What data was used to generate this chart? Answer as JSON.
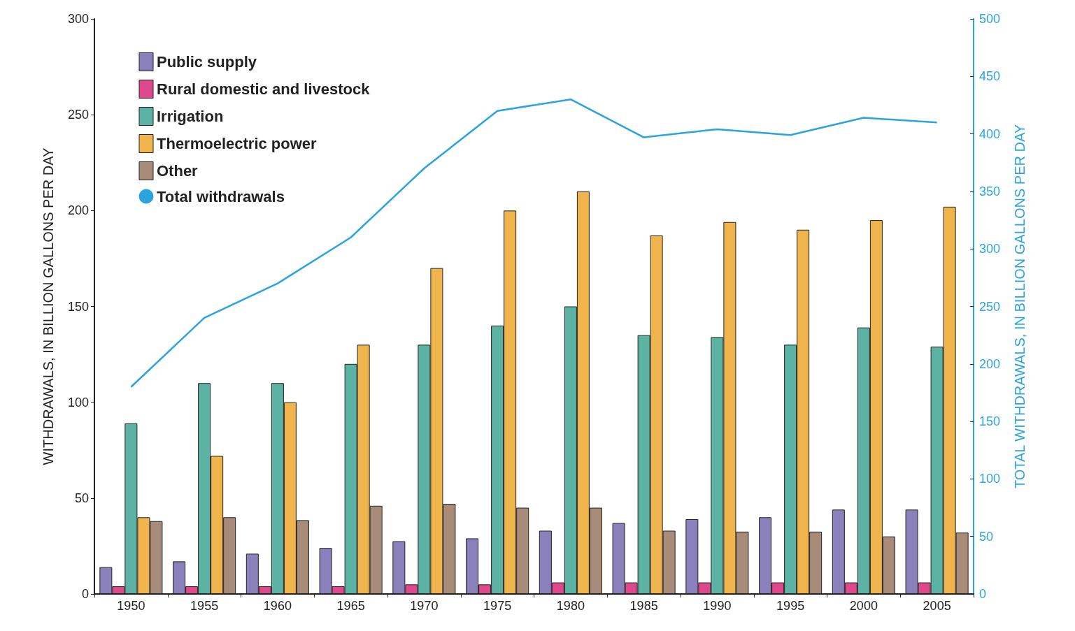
{
  "chart_data": {
    "type": "bar",
    "ylabel": "WITHDRAWALS, IN BILLION GALLONS PER DAY",
    "y2label": "TOTAL WITHDRAWALS, IN BILLION GALLONS PER DAY",
    "categories": [
      "1950",
      "1955",
      "1960",
      "1965",
      "1970",
      "1975",
      "1980",
      "1985",
      "1990",
      "1995",
      "2000",
      "2005"
    ],
    "series": [
      {
        "name": "Public supply",
        "color": "#8a80bb",
        "values": [
          14,
          17,
          21,
          24,
          27.5,
          29,
          33,
          37,
          39,
          40,
          44,
          44
        ]
      },
      {
        "name": "Rural domestic and livestock",
        "color": "#e0488c",
        "values": [
          4,
          4,
          4,
          4,
          5,
          5,
          6,
          6,
          6,
          6,
          6,
          6
        ]
      },
      {
        "name": "Irrigation",
        "color": "#5cb3a3",
        "values": [
          89,
          110,
          110,
          120,
          130,
          140,
          150,
          135,
          134,
          130,
          139,
          129
        ]
      },
      {
        "name": "Thermoelectric power",
        "color": "#f0b44c",
        "values": [
          40,
          72,
          100,
          130,
          170,
          200,
          210,
          187,
          194,
          190,
          195,
          202
        ]
      },
      {
        "name": "Other",
        "color": "#a98b7a",
        "values": [
          38,
          40,
          38.5,
          46,
          47,
          45,
          45,
          33,
          32.5,
          32.5,
          30,
          32
        ]
      },
      {
        "name": "Total withdrawals",
        "type": "line",
        "axis": "y2",
        "color": "#2aa3e0",
        "values": [
          180,
          240,
          270,
          310,
          370,
          420,
          430,
          397,
          404,
          399,
          414,
          410
        ]
      }
    ],
    "ylim": [
      0,
      300
    ],
    "yticks": [
      0,
      50,
      100,
      150,
      200,
      250,
      300
    ],
    "y2lim": [
      0,
      500
    ],
    "y2ticks": [
      0,
      50,
      100,
      150,
      200,
      250,
      300,
      350,
      400,
      450,
      500
    ],
    "grid": false,
    "legend": "top left",
    "marker": "none"
  }
}
